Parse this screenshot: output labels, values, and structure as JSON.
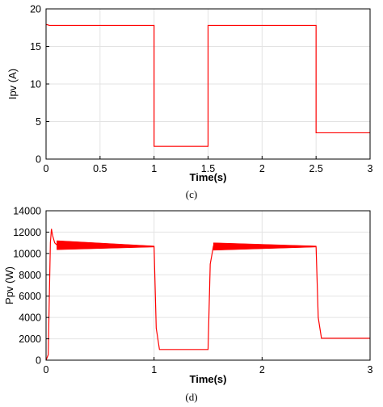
{
  "chart_data": [
    {
      "type": "line",
      "caption": "(c)",
      "xlabel": "Time(s)",
      "ylabel": "Ipv (A)",
      "xlim": [
        0,
        3
      ],
      "ylim": [
        0,
        20
      ],
      "xticks": [
        "0",
        "0.5",
        "1",
        "1.5",
        "2",
        "2.5",
        "3"
      ],
      "yticks": [
        "0",
        "5",
        "10",
        "15",
        "20"
      ],
      "grid": true,
      "color": "#ff0000",
      "series": [
        {
          "x": [
            0,
            0.01,
            0.03,
            0.06,
            0.1,
            1.0,
            1.0,
            1.5,
            1.5,
            2.5,
            2.5,
            3.0
          ],
          "y": [
            17.9,
            17.9,
            17.8,
            17.8,
            17.8,
            17.8,
            1.7,
            1.7,
            17.8,
            17.8,
            3.5,
            3.5
          ]
        }
      ]
    },
    {
      "type": "line",
      "caption": "(d)",
      "xlabel": "Time(s)",
      "ylabel": "Ppv (W)",
      "xlim": [
        0,
        3
      ],
      "ylim": [
        0,
        14000
      ],
      "xticks": [
        "0",
        "1",
        "2",
        "3"
      ],
      "yticks": [
        "0",
        "2000",
        "4000",
        "6000",
        "8000",
        "10000",
        "12000",
        "14000"
      ],
      "grid": true,
      "color": "#ff0000",
      "series": [
        {
          "x": [
            0,
            0.02,
            0.04,
            0.05,
            0.06,
            0.08,
            0.1,
            0.3,
            0.6,
            1.0,
            1.02,
            1.05,
            1.5,
            1.52,
            1.55,
            1.8,
            2.1,
            2.5,
            2.52,
            2.55,
            3.0
          ],
          "y": [
            0,
            500,
            11000,
            12300,
            11700,
            11000,
            10800,
            10750,
            10700,
            10650,
            3000,
            1000,
            1000,
            9000,
            10700,
            10700,
            10700,
            10650,
            4000,
            2050,
            2050
          ]
        }
      ],
      "oscillation_bands": [
        {
          "x": [
            0.1,
            1.0
          ],
          "low": [
            10350,
            10600
          ],
          "high": [
            11200,
            10700
          ]
        },
        {
          "x": [
            1.55,
            2.5
          ],
          "low": [
            10300,
            10600
          ],
          "high": [
            11000,
            10700
          ]
        }
      ]
    }
  ]
}
